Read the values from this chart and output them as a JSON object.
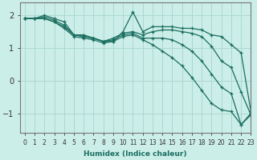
{
  "xlabel": "Humidex (Indice chaleur)",
  "bg_color": "#cceee8",
  "grid_color": "#aad8d0",
  "line_color": "#1a6e60",
  "xlim": [
    -0.5,
    23
  ],
  "ylim": [
    -1.6,
    2.4
  ],
  "yticks": [
    -1,
    0,
    1,
    2
  ],
  "xticks": [
    0,
    1,
    2,
    3,
    4,
    5,
    6,
    7,
    8,
    9,
    10,
    11,
    12,
    13,
    14,
    15,
    16,
    17,
    18,
    19,
    20,
    21,
    22,
    23
  ],
  "series": [
    {
      "x": [
        0,
        1,
        2,
        3,
        4,
        5,
        6,
        7,
        8,
        9,
        10,
        11,
        12,
        13,
        14,
        15,
        16,
        17,
        18,
        19,
        20,
        21,
        22,
        23
      ],
      "y": [
        1.9,
        1.9,
        2.0,
        1.9,
        1.8,
        1.4,
        1.4,
        1.3,
        1.2,
        1.2,
        1.5,
        2.1,
        1.5,
        1.65,
        1.65,
        1.65,
        1.6,
        1.6,
        1.55,
        1.4,
        1.35,
        1.1,
        0.85,
        -0.95
      ]
    },
    {
      "x": [
        0,
        1,
        2,
        3,
        4,
        5,
        6,
        7,
        8,
        9,
        10,
        11,
        12,
        13,
        14,
        15,
        16,
        17,
        18,
        19,
        20,
        21,
        22,
        23
      ],
      "y": [
        1.9,
        1.9,
        1.95,
        1.85,
        1.7,
        1.4,
        1.35,
        1.3,
        1.2,
        1.3,
        1.45,
        1.5,
        1.4,
        1.5,
        1.55,
        1.55,
        1.5,
        1.45,
        1.35,
        1.05,
        0.6,
        0.4,
        -0.35,
        -1.05
      ]
    },
    {
      "x": [
        0,
        1,
        2,
        3,
        4,
        5,
        6,
        7,
        8,
        9,
        10,
        11,
        12,
        13,
        14,
        15,
        16,
        17,
        18,
        19,
        20,
        21,
        22,
        23
      ],
      "y": [
        1.9,
        1.9,
        1.9,
        1.8,
        1.65,
        1.4,
        1.35,
        1.3,
        1.2,
        1.25,
        1.4,
        1.45,
        1.3,
        1.3,
        1.3,
        1.25,
        1.1,
        0.9,
        0.6,
        0.2,
        -0.2,
        -0.4,
        -1.35,
        -1.05
      ]
    },
    {
      "x": [
        0,
        1,
        2,
        3,
        4,
        5,
        6,
        7,
        8,
        9,
        10,
        11,
        12,
        13,
        14,
        15,
        16,
        17,
        18,
        19,
        20,
        21,
        22,
        23
      ],
      "y": [
        1.9,
        1.9,
        1.9,
        1.8,
        1.6,
        1.35,
        1.3,
        1.25,
        1.15,
        1.2,
        1.35,
        1.4,
        1.25,
        1.1,
        0.9,
        0.7,
        0.45,
        0.1,
        -0.3,
        -0.7,
        -0.9,
        -0.95,
        -1.35,
        -1.0
      ]
    }
  ]
}
